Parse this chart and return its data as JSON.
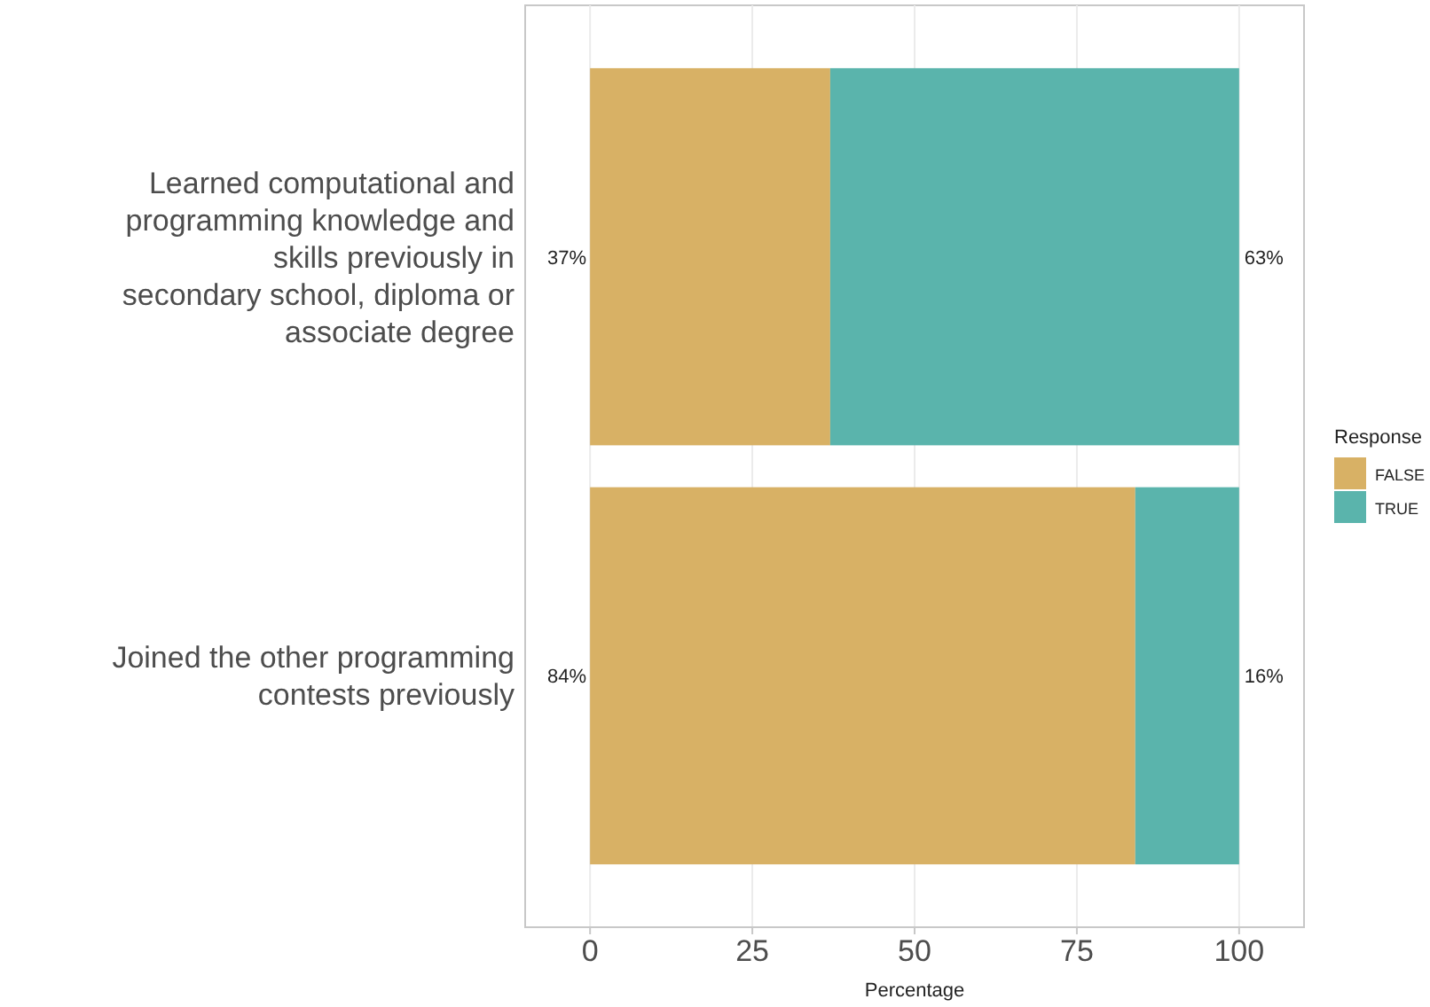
{
  "chart_data": {
    "type": "bar",
    "orientation": "horizontal",
    "stacked": true,
    "categories": [
      "Learned computational and programming knowledge and skills previously in secondary school, diploma or associate degree",
      "Joined the other programming contests previously"
    ],
    "series": [
      {
        "name": "FALSE",
        "color": "#d8b165",
        "values": [
          37,
          84
        ],
        "value_labels": [
          "37%",
          "84%"
        ]
      },
      {
        "name": "TRUE",
        "color": "#5ab4ac",
        "values": [
          63,
          16
        ],
        "value_labels": [
          "63%",
          "16%"
        ]
      }
    ],
    "xlim": [
      -10,
      110
    ],
    "xticks": [
      0,
      25,
      50,
      75,
      100
    ],
    "xlabel": "Percentage",
    "legend_title": "Response",
    "legend": "right",
    "grid": true
  }
}
